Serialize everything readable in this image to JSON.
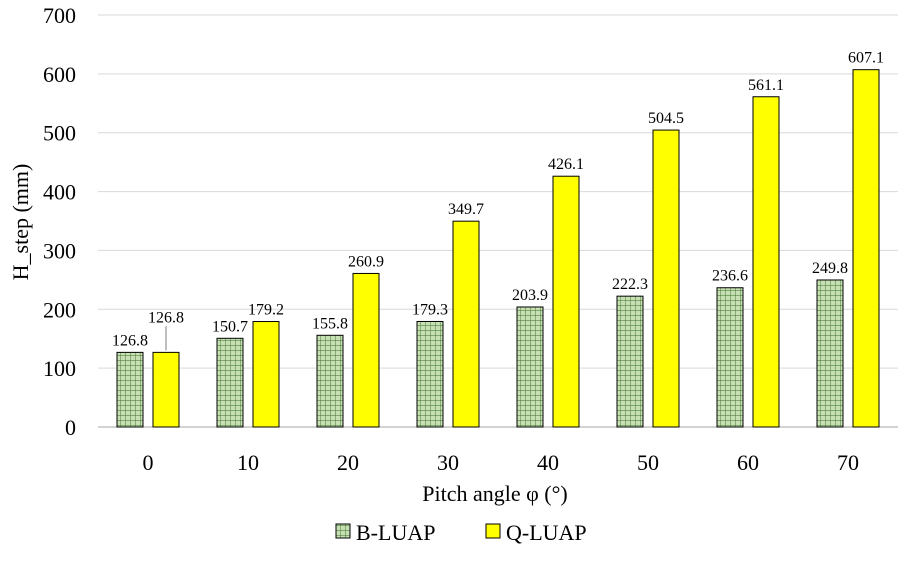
{
  "chart_data": {
    "type": "bar",
    "categories": [
      "0",
      "10",
      "20",
      "30",
      "40",
      "50",
      "60",
      "70"
    ],
    "series": [
      {
        "name": "B-LUAP",
        "values": [
          126.8,
          150.7,
          155.8,
          179.3,
          203.9,
          222.3,
          236.6,
          249.8
        ],
        "labels": [
          "126.8",
          "150.7",
          "155.8",
          "179.3",
          "203.9",
          "222.3",
          "236.6",
          "249.8"
        ],
        "color": "#c6e0b4",
        "pattern": "grid"
      },
      {
        "name": "Q-LUAP",
        "values": [
          126.8,
          179.2,
          260.9,
          349.7,
          426.1,
          504.5,
          561.1,
          607.1
        ],
        "labels": [
          "126.8",
          "179.2",
          "260.9",
          "349.7",
          "426.1",
          "504.5",
          "561.1",
          "607.1"
        ],
        "color": "#ffff00",
        "pattern": "solid"
      }
    ],
    "xlabel": "Pitch angle φ (°)",
    "ylabel": "H_step (mm)",
    "ylim": [
      0,
      700
    ],
    "yticks": [
      "0",
      "100",
      "200",
      "300",
      "400",
      "500",
      "600",
      "700"
    ],
    "grid": true,
    "legend": "bottom"
  }
}
